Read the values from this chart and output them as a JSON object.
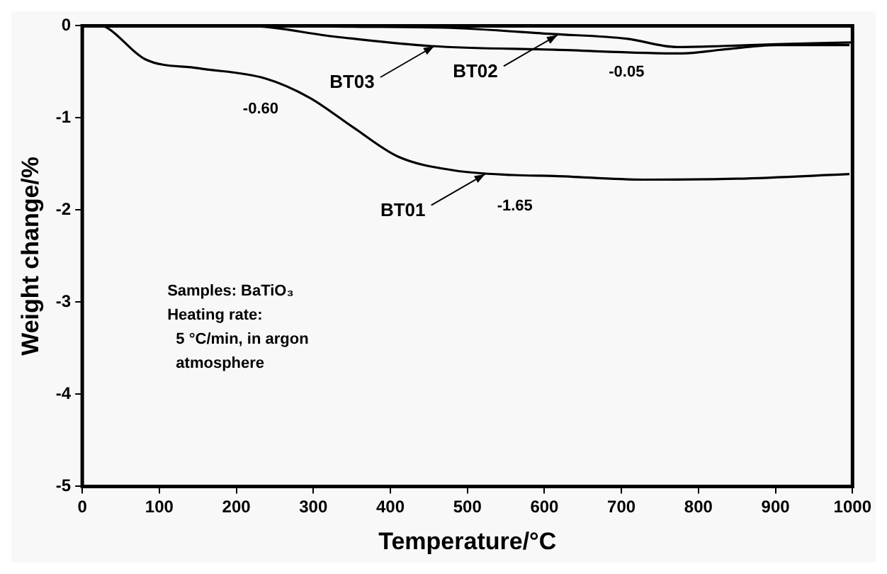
{
  "chart_data": {
    "type": "line",
    "xlabel": "Temperature/°C",
    "ylabel": "Weight change/%",
    "xlim": [
      0,
      1000
    ],
    "xticks": [
      0,
      100,
      200,
      300,
      400,
      500,
      600,
      700,
      800,
      900,
      1000
    ],
    "ylim": [
      -5,
      0
    ],
    "yticks": [
      -5,
      -4,
      -3,
      -2,
      -1,
      0
    ],
    "grid": false,
    "legend": false,
    "marker": "none",
    "line_style": "solid",
    "series": [
      {
        "color": "#000000",
        "x": [
          0,
          25,
          34,
          81,
          150,
          237,
          295,
          353,
          410,
          483,
          560,
          613,
          729,
          850,
          996
        ],
        "values": [
          0,
          0,
          -0.03,
          -0.36,
          -0.46,
          -0.57,
          -0.78,
          -1.11,
          -1.42,
          -1.57,
          -1.62,
          -1.63,
          -1.67,
          -1.66,
          -1.61
        ]
      },
      {
        "color": "#000000",
        "x": [
          20,
          240,
          350,
          468,
          613,
          707,
          772,
          830,
          902,
          1000
        ],
        "values": [
          0,
          0,
          -0.01,
          -0.02,
          -0.09,
          -0.14,
          -0.23,
          -0.22,
          -0.2,
          -0.18
        ]
      },
      {
        "color": "#000000",
        "x": [
          30,
          210,
          330,
          453,
          613,
          779,
          830,
          902,
          996
        ],
        "values": [
          0,
          0,
          -0.12,
          -0.22,
          -0.26,
          -0.3,
          -0.26,
          -0.21,
          -0.21
        ]
      }
    ],
    "annotations": [
      {
        "text": "BT01",
        "x": 523,
        "y": -1.61
      },
      {
        "text": "BT02",
        "x": 617,
        "y": -0.1
      },
      {
        "text": "BT03",
        "x": 457,
        "y": -0.22
      },
      {
        "text": "-0.60",
        "x": 250,
        "y": -0.6
      },
      {
        "text": "-1.65",
        "x": 580,
        "y": -1.65
      },
      {
        "text": "-0.05",
        "x": 725,
        "y": -0.2
      },
      "Samples: BaTiO₃\nHeating rate:\n  5 °C/min, in argon\n  atmosphere"
    ]
  }
}
